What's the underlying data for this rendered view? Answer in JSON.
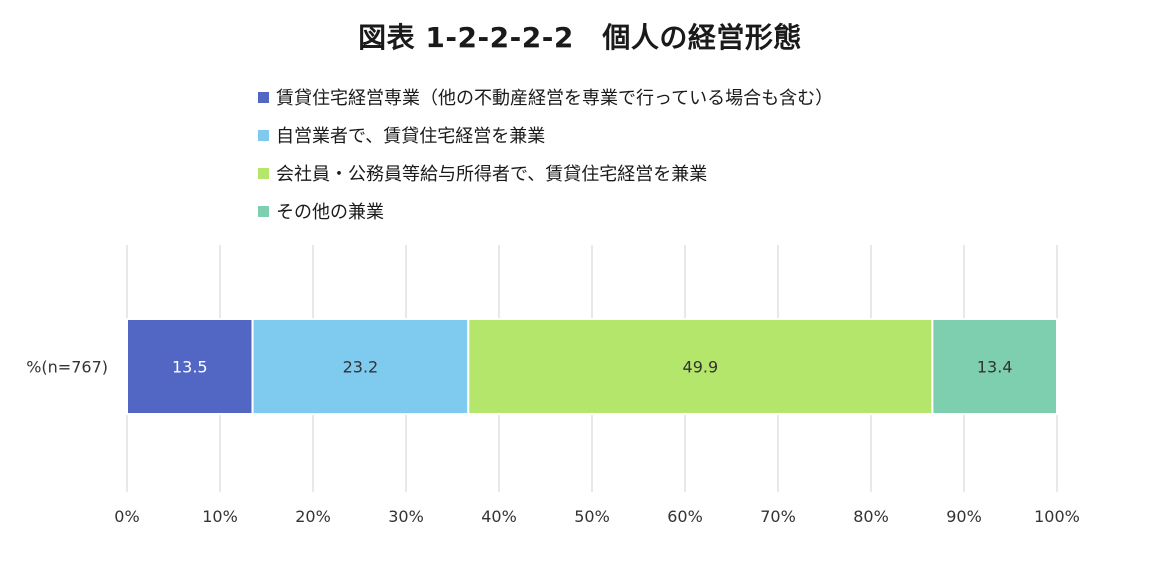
{
  "chart_data": {
    "type": "bar",
    "orientation": "horizontal",
    "stacked": true,
    "title": "図表 1-2-2-2-2　個人の経営形態",
    "categories": [
      "%(n=767)"
    ],
    "series": [
      {
        "name": "賃貸住宅経営専業（他の不動産経営を専業で行っている場合も含む）",
        "values": [
          13.5
        ],
        "color": "#5266c4"
      },
      {
        "name": "自営業者で、賃貸住宅経営を兼業",
        "values": [
          23.2
        ],
        "color": "#7ecbef"
      },
      {
        "name": "会社員・公務員等給与所得者で、賃貸住宅経営を兼業",
        "values": [
          49.9
        ],
        "color": "#b5e66c"
      },
      {
        "name": "その他の兼業",
        "values": [
          13.4
        ],
        "color": "#7dcfb0"
      }
    ],
    "data_labels": [
      "13.5",
      "23.2",
      "49.9",
      "13.4"
    ],
    "data_label_colors": [
      "#ffffff",
      "#333333",
      "#333333",
      "#333333"
    ],
    "xlim": [
      0,
      100
    ],
    "xticks": [
      0,
      10,
      20,
      30,
      40,
      50,
      60,
      70,
      80,
      90,
      100
    ],
    "xtick_labels": [
      "0%",
      "10%",
      "20%",
      "30%",
      "40%",
      "50%",
      "60%",
      "70%",
      "80%",
      "90%",
      "100%"
    ],
    "grid": true,
    "grid_color": "#d9d9d9",
    "legend_position": "top"
  }
}
